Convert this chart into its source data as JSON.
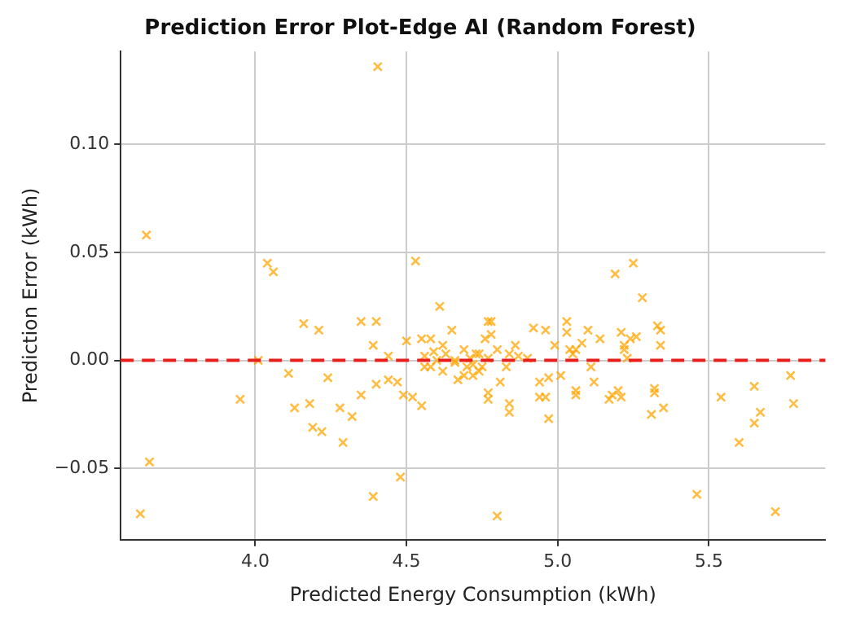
{
  "chart_data": {
    "type": "scatter",
    "title": "Prediction Error Plot-Edge AI (Random Forest)",
    "xlabel": "Predicted Energy Consumption (kWh)",
    "ylabel": "Prediction Error (kWh)",
    "xlim": [
      3.555,
      5.885
    ],
    "ylim": [
      -0.083,
      0.143
    ],
    "xticks": [
      {
        "value": 4,
        "label": "4.0"
      },
      4.5,
      {
        "value": 5,
        "label": "5.0"
      },
      5.5
    ],
    "yticks": [
      {
        "value": -0.05,
        "label": "−0.05"
      },
      {
        "value": 0,
        "label": "0.00"
      },
      0.05,
      {
        "value": 0.1,
        "label": "0.10"
      }
    ],
    "grid": true,
    "marker": "cross",
    "legend": false,
    "ref_lines": [
      {
        "axis": "y",
        "value": 0,
        "color": "#e8201d",
        "line_style": "dashed"
      }
    ],
    "series": [
      {
        "color": "#ffa500",
        "x": [
          4.405,
          3.64,
          4.04,
          4.06,
          4.53,
          4.61,
          5.19,
          5.25,
          5.28,
          3.62,
          3.65,
          4.39,
          4.48,
          4.8,
          5.46,
          5.72,
          5.54,
          5.6,
          5.65,
          5.65,
          5.67,
          5.77,
          5.78,
          5.35,
          5.32,
          5.32,
          5.31,
          5.34,
          5.34,
          5.33,
          3.95,
          4.01,
          4.11,
          4.13,
          4.16,
          4.18,
          4.19,
          4.21,
          4.22,
          4.24,
          4.28,
          4.29,
          4.32,
          4.35,
          4.35,
          4.4,
          4.39,
          4.4,
          4.44,
          4.44,
          4.47,
          4.49,
          4.5,
          4.52,
          4.55,
          4.56,
          4.56,
          4.58,
          4.59,
          4.62,
          4.65,
          4.66,
          4.67,
          4.69,
          4.72,
          4.74,
          4.74,
          4.77,
          4.78,
          4.76,
          4.81,
          4.83,
          4.86,
          4.84,
          4.84,
          4.69,
          4.72,
          4.77,
          4.78,
          4.77,
          4.84,
          4.87,
          4.9,
          4.92,
          4.94,
          4.94,
          4.96,
          4.96,
          4.97,
          4.97,
          4.99,
          5.01,
          5.03,
          5.03,
          5.04,
          5.05,
          5.06,
          5.06,
          5.06,
          5.08,
          5.1,
          5.11,
          5.12,
          5.14,
          5.17,
          5.18,
          5.2,
          5.21,
          5.22,
          5.24,
          5.26,
          5.21,
          5.22,
          5.23,
          4.6,
          4.63,
          4.7,
          4.73,
          4.75,
          4.77,
          4.55,
          4.58,
          4.62,
          4.66,
          4.71,
          4.8
        ],
        "values": [
          0.136,
          0.058,
          0.045,
          0.041,
          0.046,
          0.025,
          0.04,
          0.045,
          0.029,
          -0.071,
          -0.047,
          -0.063,
          -0.054,
          -0.072,
          -0.062,
          -0.07,
          -0.017,
          -0.038,
          -0.012,
          -0.029,
          -0.024,
          -0.007,
          -0.02,
          -0.022,
          -0.013,
          -0.015,
          -0.025,
          0.007,
          0.014,
          0.016,
          -0.018,
          0.0,
          -0.006,
          -0.022,
          0.017,
          -0.02,
          -0.031,
          0.014,
          -0.033,
          -0.008,
          -0.022,
          -0.038,
          -0.026,
          -0.016,
          0.018,
          0.018,
          0.007,
          -0.011,
          -0.009,
          0.002,
          -0.01,
          -0.016,
          0.009,
          -0.017,
          -0.021,
          0.002,
          -0.003,
          0.01,
          0.004,
          -0.005,
          0.014,
          -0.001,
          -0.009,
          0.005,
          -0.002,
          0.003,
          -0.005,
          -0.015,
          0.018,
          0.01,
          -0.01,
          -0.003,
          0.007,
          -0.02,
          0.003,
          -0.007,
          -0.007,
          0.018,
          0.012,
          -0.018,
          -0.024,
          0.002,
          0.001,
          0.015,
          -0.01,
          -0.017,
          0.014,
          -0.017,
          -0.027,
          -0.008,
          0.007,
          -0.007,
          0.018,
          0.013,
          0.005,
          0.003,
          0.005,
          -0.014,
          -0.016,
          0.008,
          0.014,
          -0.003,
          -0.01,
          0.01,
          -0.018,
          -0.016,
          -0.014,
          -0.017,
          0.007,
          0.01,
          0.011,
          0.013,
          0.005,
          0.001,
          0.0,
          0.003,
          -0.003,
          0.003,
          -0.003,
          0.001,
          0.01,
          -0.003,
          0.007,
          0.0,
          0.001,
          0.005
        ]
      }
    ]
  }
}
